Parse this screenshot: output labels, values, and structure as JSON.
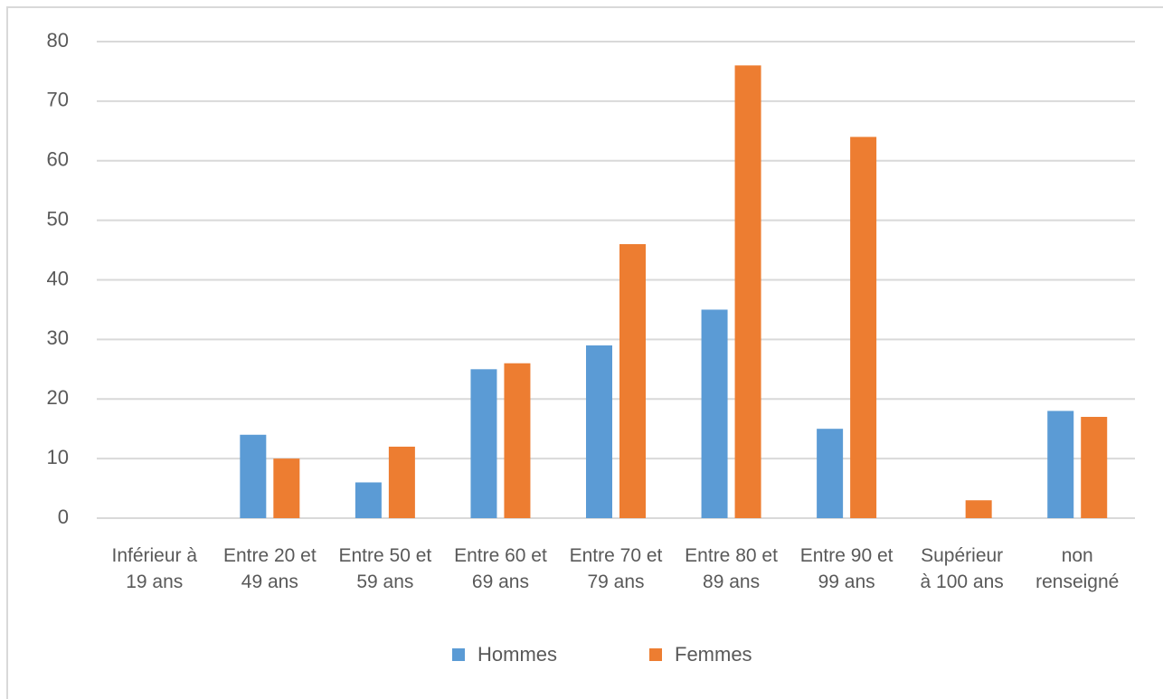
{
  "chart_data": {
    "type": "bar",
    "categories": [
      "Inférieur à 19 ans",
      "Entre 20 et 49 ans",
      "Entre 50 et 59 ans",
      "Entre 60 et 69 ans",
      "Entre 70 et 79 ans",
      "Entre 80 et 89 ans",
      "Entre 90 et 99 ans",
      "Supérieur à 100 ans",
      "non renseigné"
    ],
    "series": [
      {
        "name": "Hommes",
        "color": "#5b9bd5",
        "values": [
          0,
          14,
          6,
          25,
          29,
          35,
          15,
          0,
          18
        ]
      },
      {
        "name": "Femmes",
        "color": "#ed7d31",
        "values": [
          0,
          10,
          12,
          26,
          46,
          76,
          64,
          3,
          17
        ]
      }
    ],
    "ylim": [
      0,
      80
    ],
    "yticks": [
      0,
      10,
      20,
      30,
      40,
      50,
      60,
      70,
      80
    ],
    "grid": true,
    "legend": "bottom"
  }
}
